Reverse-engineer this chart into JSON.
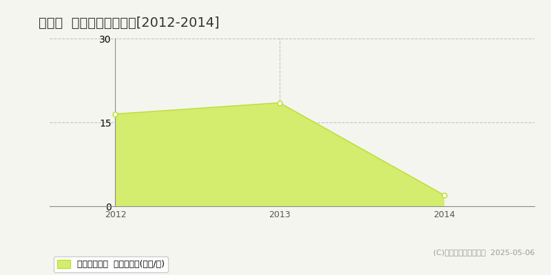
{
  "title": "東川町  収益物件価格推移[2012-2014]",
  "years": [
    2012,
    2013,
    2014
  ],
  "values": [
    16.5,
    18.5,
    2.0
  ],
  "xlim_left": 2011.6,
  "xlim_right": 2014.55,
  "ylim": [
    0,
    30
  ],
  "yticks": [
    0,
    15,
    30
  ],
  "xticks": [
    2012,
    2013,
    2014
  ],
  "line_color": "#bfdf3c",
  "fill_color": "#d4ed6e",
  "fill_alpha": 1.0,
  "marker_facecolor": "white",
  "marker_edgecolor": "#bfdf3c",
  "grid_color": "#bbbbbb",
  "bg_color": "#f5f5f0",
  "legend_label": "収益物件価格  平均坊単価(万円/坊)",
  "copyright_text": "(C)土地価格ドットコム  2025-05-06",
  "title_fontsize": 14,
  "axis_fontsize": 9,
  "legend_fontsize": 9
}
